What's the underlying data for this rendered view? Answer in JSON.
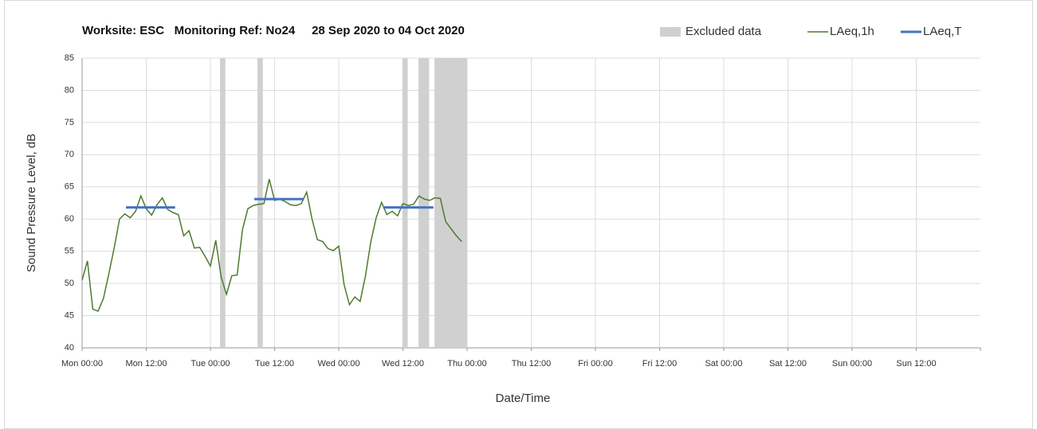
{
  "chart_data": {
    "type": "line",
    "title": "Worksite: ESC   Monitoring Ref: No24     28 Sep 2020 to 04 Oct 2020",
    "x_label": "Date/Time",
    "y_label": "Sound Pressure Level, dB",
    "xlim": [
      0,
      168
    ],
    "xticks": [
      {
        "value": 0,
        "label": "Mon 00:00"
      },
      {
        "value": 12,
        "label": "Mon 12:00"
      },
      {
        "value": 24,
        "label": "Tue 00:00"
      },
      {
        "value": 36,
        "label": "Tue 12:00"
      },
      {
        "value": 48,
        "label": "Wed 00:00"
      },
      {
        "value": 60,
        "label": "Wed 12:00"
      },
      {
        "value": 72,
        "label": "Thu 00:00"
      },
      {
        "value": 84,
        "label": "Thu 12:00"
      },
      {
        "value": 96,
        "label": "Fri 00:00"
      },
      {
        "value": 108,
        "label": "Fri 12:00"
      },
      {
        "value": 120,
        "label": "Sat 00:00"
      },
      {
        "value": 132,
        "label": "Sat 12:00"
      },
      {
        "value": 144,
        "label": "Sun 00:00"
      },
      {
        "value": 156,
        "label": "Sun 12:00"
      }
    ],
    "ylim": [
      40,
      85
    ],
    "yticks": [
      40,
      45,
      50,
      55,
      60,
      65,
      70,
      75,
      80,
      85
    ],
    "grid": true,
    "legend": "top-right",
    "excluded": {
      "name": "Excluded data",
      "color": "#d0d0d0",
      "ranges": [
        [
          25.8,
          26.8
        ],
        [
          32.8,
          33.8
        ],
        [
          59.9,
          60.9
        ],
        [
          62.9,
          64.9
        ],
        [
          65.9,
          72
        ]
      ]
    },
    "series": [
      {
        "name": "LAeq,1h",
        "color": "#4e7a2e",
        "x": [
          0,
          1,
          2,
          3,
          4,
          5,
          6,
          7,
          8,
          9,
          10,
          11,
          12,
          13,
          14,
          15,
          16,
          17,
          18,
          19,
          20,
          21,
          22,
          23,
          24,
          25,
          26,
          27,
          28,
          29,
          30,
          31,
          32,
          33,
          34,
          35,
          36,
          37,
          38,
          39,
          40,
          41,
          42,
          43,
          44,
          45,
          46,
          47,
          48,
          49,
          50,
          51,
          52,
          53,
          54,
          55,
          56,
          57,
          58,
          59,
          60,
          61,
          62,
          63,
          64,
          65,
          66,
          67,
          68,
          69,
          70,
          71
        ],
        "values": [
          50.5,
          53.5,
          46,
          45.7,
          47.7,
          51.5,
          55.5,
          60,
          60.8,
          60.2,
          61.2,
          63.6,
          61.6,
          60.6,
          62.2,
          63.3,
          61.5,
          61,
          60.7,
          57.4,
          58.2,
          55.5,
          55.6,
          54.2,
          52.7,
          56.7,
          51,
          48.3,
          51.2,
          51.3,
          58.4,
          61.6,
          62.1,
          62.3,
          62.4,
          66.2,
          62.9,
          63.1,
          62.7,
          62.2,
          62.1,
          62.4,
          64.2,
          60,
          56.8,
          56.5,
          55.4,
          55.1,
          55.8,
          49.8,
          46.7,
          47.9,
          47.2,
          51.2,
          56.5,
          60.2,
          62.6,
          60.7,
          61.2,
          60.5,
          62.4,
          62.1,
          62.3,
          63.6,
          63.1,
          62.9,
          63.3,
          63.2,
          59.6,
          58.5,
          57.4,
          56.5
        ]
      },
      {
        "name": "LAeq,T",
        "color": "#4472c4",
        "segments": [
          {
            "x": [
              8.2,
              17.4
            ],
            "value": 61.8
          },
          {
            "x": [
              32.2,
              41.5
            ],
            "value": 63.1
          },
          {
            "x": [
              56.3,
              65.7
            ],
            "value": 61.8
          }
        ]
      }
    ]
  }
}
